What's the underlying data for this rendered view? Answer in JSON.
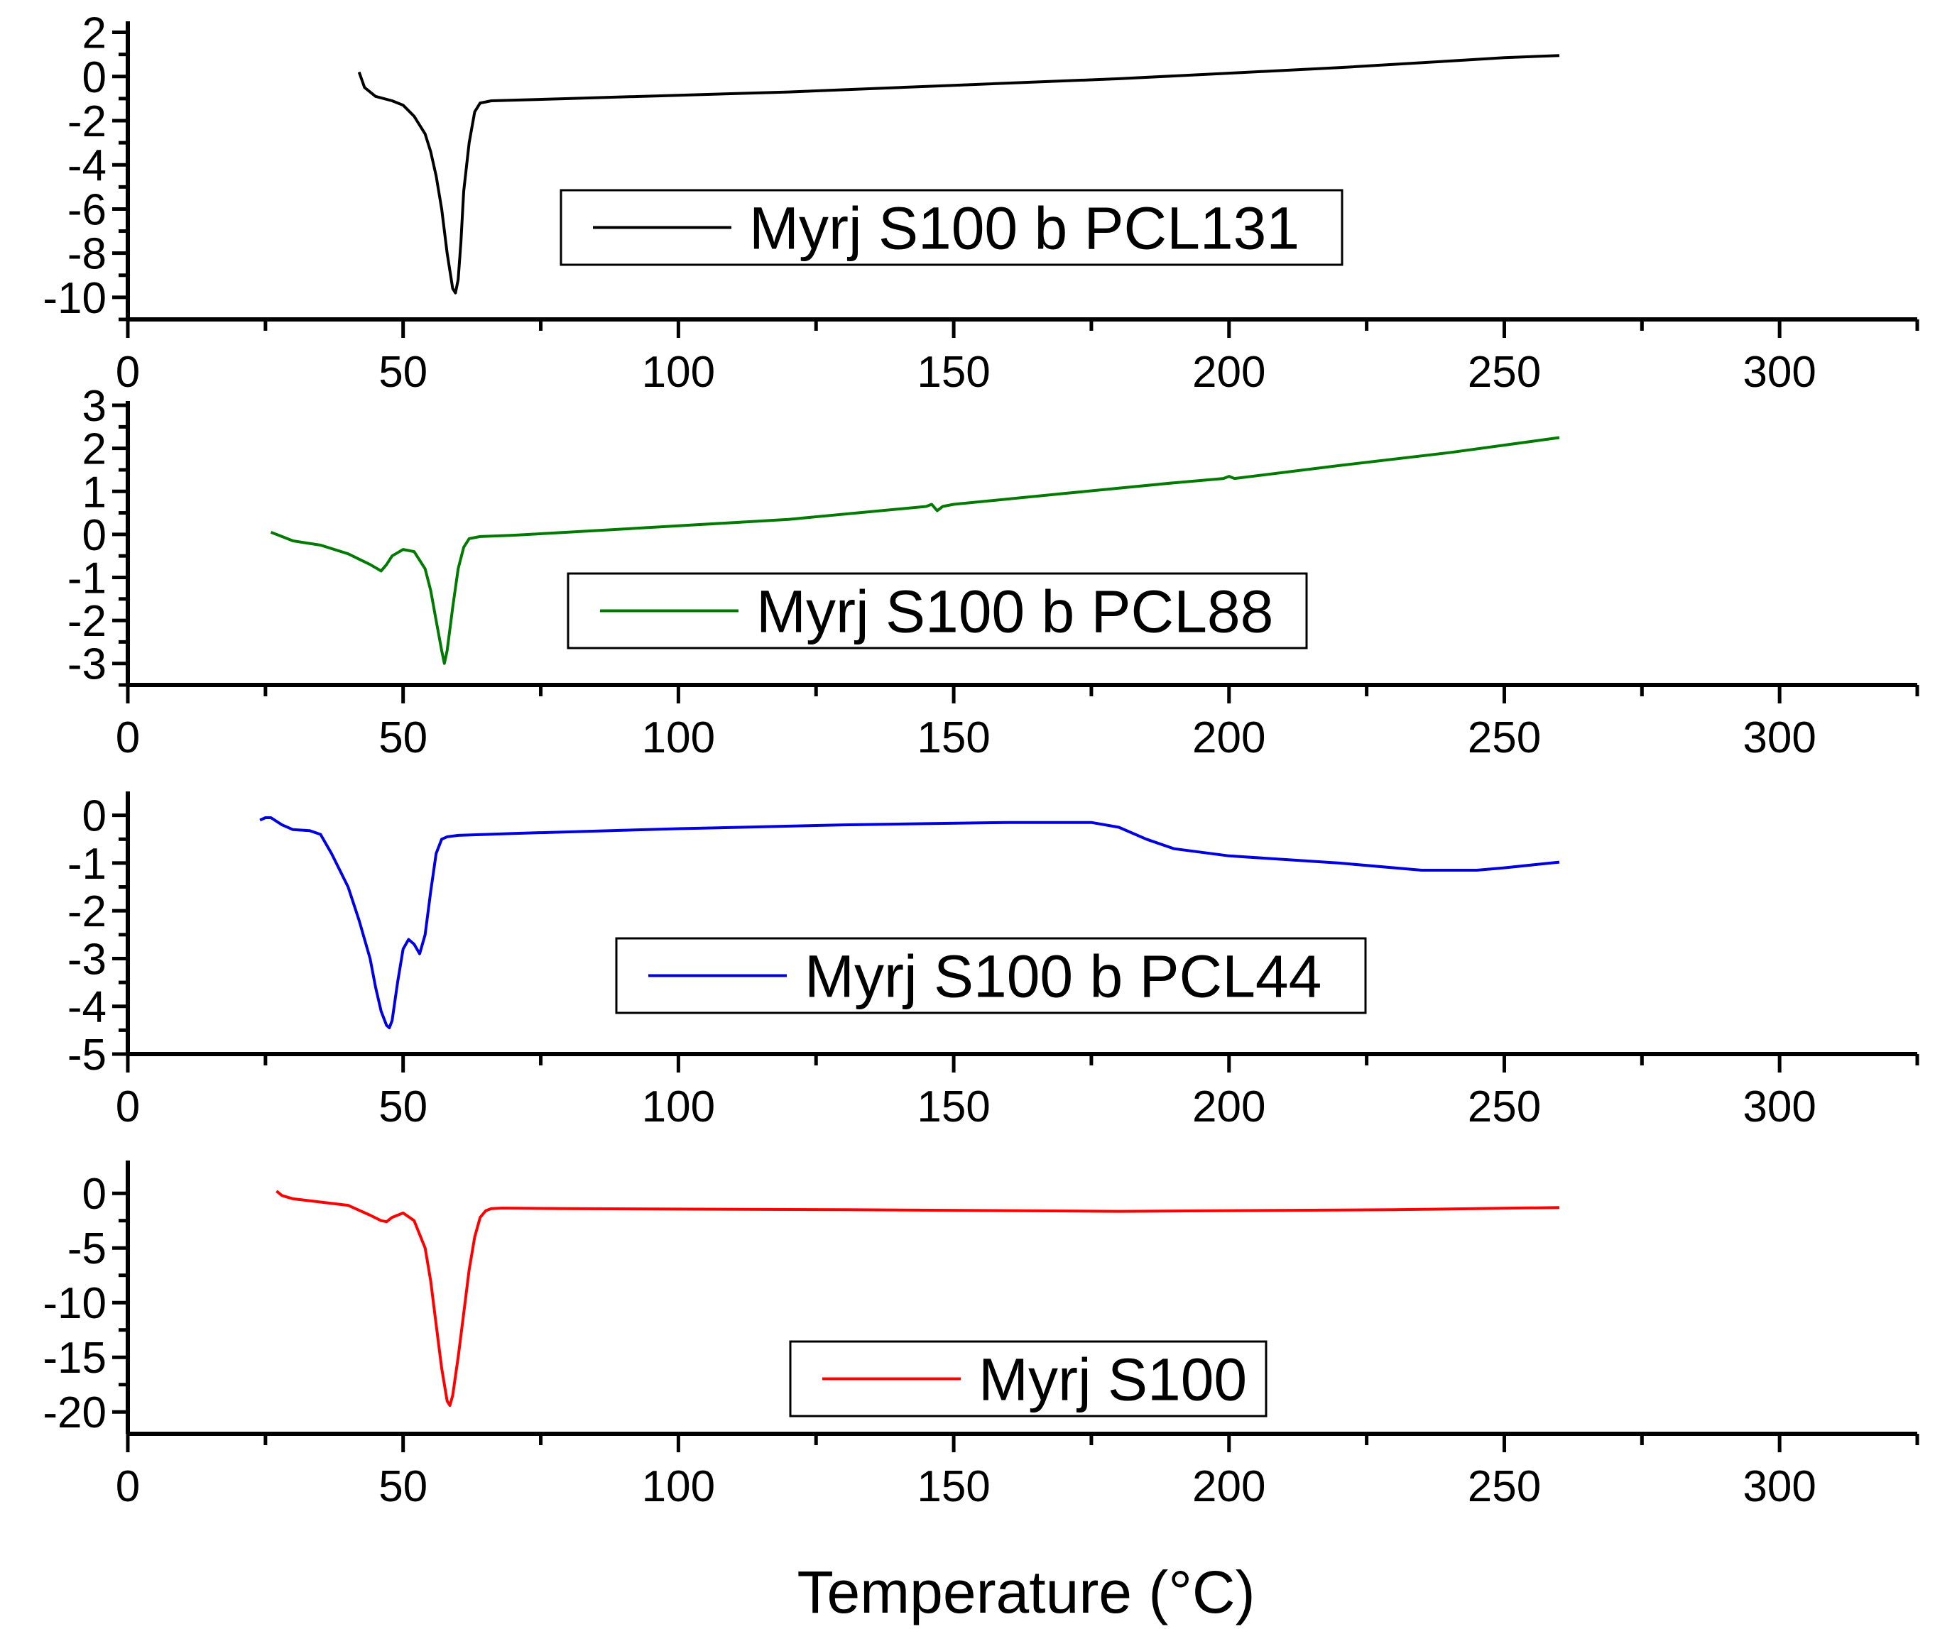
{
  "chart_data": [
    {
      "type": "line",
      "series": [
        {
          "name": "Myrj S100 b PCL131",
          "color": "#000000",
          "x": [
            42,
            43,
            45,
            48,
            50,
            52,
            54,
            55,
            56,
            57,
            58,
            59,
            59.5,
            60,
            60.5,
            61,
            62,
            63,
            64,
            65,
            66,
            80,
            100,
            120,
            150,
            180,
            200,
            220,
            240,
            250,
            260
          ],
          "y": [
            0.2,
            -0.5,
            -0.9,
            -1.1,
            -1.3,
            -1.8,
            -2.6,
            -3.4,
            -4.5,
            -6.0,
            -8.0,
            -9.6,
            -9.8,
            -9.2,
            -7.5,
            -5.2,
            -3.0,
            -1.6,
            -1.2,
            -1.15,
            -1.1,
            -1.0,
            -0.85,
            -0.7,
            -0.4,
            -0.1,
            0.15,
            0.4,
            0.7,
            0.85,
            0.95
          ]
        }
      ],
      "x_ticks": [
        "0",
        "50",
        "100",
        "150",
        "200",
        "250",
        "300"
      ],
      "y_ticks": [
        "2",
        "0",
        "-2",
        "-4",
        "-6",
        "-8",
        "-10"
      ],
      "xlim": [
        0,
        325
      ],
      "ylim": [
        -11,
        2.5
      ]
    },
    {
      "type": "line",
      "series": [
        {
          "name": "Myrj S100 b PCL88",
          "color": "#007a00",
          "x": [
            26,
            28,
            30,
            35,
            40,
            44,
            46,
            47,
            48,
            50,
            52,
            54,
            55,
            56,
            57,
            57.5,
            58,
            59,
            60,
            61,
            62,
            64,
            70,
            80,
            100,
            120,
            145,
            146,
            147,
            148,
            150,
            170,
            190,
            199,
            200,
            201,
            220,
            240,
            260
          ],
          "y": [
            0.05,
            -0.05,
            -0.15,
            -0.25,
            -0.45,
            -0.7,
            -0.85,
            -0.7,
            -0.5,
            -0.35,
            -0.4,
            -0.8,
            -1.3,
            -2.0,
            -2.7,
            -3.0,
            -2.7,
            -1.7,
            -0.8,
            -0.3,
            -0.1,
            -0.05,
            -0.02,
            0.05,
            0.2,
            0.35,
            0.65,
            0.7,
            0.55,
            0.65,
            0.7,
            0.95,
            1.2,
            1.3,
            1.35,
            1.3,
            1.6,
            1.9,
            2.25
          ]
        }
      ],
      "x_ticks": [
        "0",
        "50",
        "100",
        "150",
        "200",
        "250",
        "300"
      ],
      "y_ticks": [
        "3",
        "2",
        "1",
        "0",
        "-1",
        "-2",
        "-3"
      ],
      "xlim": [
        0,
        325
      ],
      "ylim": [
        -3.5,
        3.1
      ]
    },
    {
      "type": "line",
      "series": [
        {
          "name": "Myrj S100 b PCL44",
          "color": "#0000e0",
          "x": [
            24,
            25,
            26,
            28,
            30,
            33,
            35,
            37,
            40,
            42,
            44,
            45,
            46,
            47,
            47.5,
            48,
            49,
            50,
            51,
            52,
            53,
            54,
            55,
            56,
            57,
            58,
            60,
            70,
            100,
            130,
            160,
            175,
            180,
            185,
            190,
            200,
            220,
            235,
            245,
            250,
            260
          ],
          "y": [
            -0.1,
            -0.05,
            -0.05,
            -0.2,
            -0.3,
            -0.32,
            -0.4,
            -0.8,
            -1.5,
            -2.2,
            -3.0,
            -3.6,
            -4.1,
            -4.4,
            -4.45,
            -4.3,
            -3.5,
            -2.8,
            -2.6,
            -2.7,
            -2.9,
            -2.5,
            -1.6,
            -0.8,
            -0.5,
            -0.45,
            -0.42,
            -0.38,
            -0.28,
            -0.2,
            -0.15,
            -0.15,
            -0.25,
            -0.5,
            -0.7,
            -0.85,
            -1.0,
            -1.15,
            -1.15,
            -1.1,
            -0.98
          ]
        }
      ],
      "x_ticks": [
        "0",
        "50",
        "100",
        "150",
        "200",
        "250",
        "300"
      ],
      "y_ticks": [
        "0",
        "-1",
        "-2",
        "-3",
        "-4",
        "-5"
      ],
      "xlim": [
        0,
        325
      ],
      "ylim": [
        -5,
        0.5
      ]
    },
    {
      "type": "line",
      "series": [
        {
          "name": "Myrj S100",
          "color": "#ff0000",
          "x": [
            27,
            28,
            30,
            35,
            40,
            44,
            46,
            47,
            48,
            50,
            52,
            54,
            55,
            56,
            57,
            58,
            58.5,
            59,
            60,
            61,
            62,
            63,
            64,
            65,
            66,
            68,
            80,
            130,
            180,
            230,
            260
          ],
          "y": [
            0.2,
            -0.2,
            -0.5,
            -0.8,
            -1.1,
            -2.0,
            -2.5,
            -2.6,
            -2.2,
            -1.8,
            -2.5,
            -5.0,
            -8.0,
            -12.0,
            -16.0,
            -19.0,
            -19.4,
            -18.5,
            -15.0,
            -11.0,
            -7.0,
            -4.0,
            -2.2,
            -1.6,
            -1.4,
            -1.35,
            -1.4,
            -1.5,
            -1.65,
            -1.5,
            -1.3
          ]
        }
      ],
      "x_ticks": [
        "0",
        "50",
        "100",
        "150",
        "200",
        "250",
        "300"
      ],
      "y_ticks": [
        "0",
        "-5",
        "-10",
        "-15",
        "-20"
      ],
      "xlim": [
        0,
        325
      ],
      "ylim": [
        -22,
        3
      ]
    }
  ],
  "xlabel": "Temperature (°C)"
}
